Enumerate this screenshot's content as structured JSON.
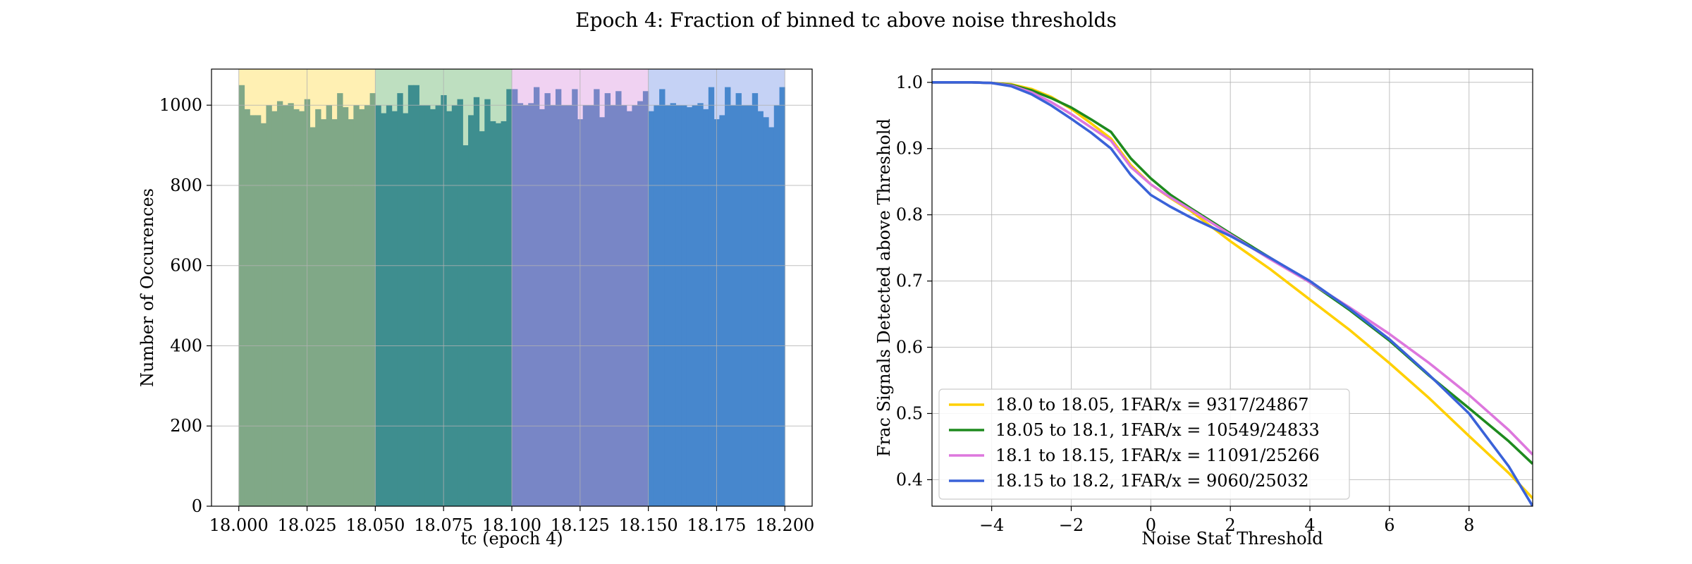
{
  "figure_title": "Epoch 4: Fraction of binned tc above noise thresholds",
  "colors": {
    "band_fill": [
      "#fff0b3",
      "#bedfc0",
      "#f0d2f2",
      "#c5d2f5"
    ],
    "hist_fill": [
      "#80a887",
      "#3e8e8f",
      "#7886c6",
      "#4787cd"
    ],
    "curve_colors": [
      "#ffd000",
      "#1e8a1e",
      "#dd77dd",
      "#3a62d8"
    ],
    "grid": "#b0b0b0",
    "axis": "#000000"
  },
  "chart_data": [
    {
      "type": "bar",
      "subtype": "histogram",
      "xlabel": "tc (epoch 4)",
      "ylabel": "Number of Occurences",
      "xlim": [
        17.99,
        18.21
      ],
      "ylim": [
        0,
        1090
      ],
      "xticks": [
        18.0,
        18.025,
        18.05,
        18.075,
        18.1,
        18.125,
        18.15,
        18.175,
        18.2
      ],
      "xtick_labels": [
        "18.000",
        "18.025",
        "18.050",
        "18.075",
        "18.100",
        "18.125",
        "18.150",
        "18.175",
        "18.200"
      ],
      "yticks": [
        0,
        200,
        400,
        600,
        800,
        1000
      ],
      "ytick_labels": [
        "0",
        "200",
        "400",
        "600",
        "800",
        "1000"
      ],
      "grid": true,
      "bin_width": 0.002,
      "shaded_bands": [
        {
          "x0": 18.0,
          "x1": 18.05
        },
        {
          "x0": 18.05,
          "x1": 18.1
        },
        {
          "x0": 18.1,
          "x1": 18.15
        },
        {
          "x0": 18.15,
          "x1": 18.2
        }
      ],
      "series": [
        {
          "x_start": 18.0,
          "values": [
            1050,
            990,
            975,
            975,
            955,
            1000,
            985,
            1010,
            1000,
            1005,
            990,
            985,
            1015,
            945,
            990,
            965,
            1000,
            965,
            1030,
            995,
            965,
            1000,
            990,
            1000,
            1030
          ]
        },
        {
          "x_start": 18.05,
          "values": [
            1000,
            980,
            1000,
            985,
            1030,
            980,
            1050,
            1050,
            1000,
            1000,
            990,
            1000,
            1025,
            985,
            1000,
            1015,
            900,
            975,
            1020,
            935,
            1015,
            960,
            955,
            960,
            1040
          ]
        },
        {
          "x_start": 18.1,
          "values": [
            1040,
            1005,
            1000,
            1005,
            1045,
            990,
            1030,
            1000,
            1040,
            1000,
            1000,
            1040,
            965,
            1000,
            1000,
            1040,
            970,
            1030,
            1000,
            1035,
            1000,
            985,
            1000,
            1010,
            1035
          ]
        },
        {
          "x_start": 18.15,
          "values": [
            985,
            1000,
            1040,
            1000,
            1005,
            1000,
            1000,
            995,
            1000,
            1005,
            990,
            1045,
            965,
            975,
            1045,
            1000,
            1030,
            1000,
            1000,
            1030,
            985,
            970,
            945,
            1000,
            1045
          ]
        }
      ]
    },
    {
      "type": "line",
      "xlabel": "Noise Stat Threshold",
      "ylabel": "Frac Signals Detected above Threshold",
      "xlim": [
        -5.5,
        9.6
      ],
      "ylim": [
        0.36,
        1.02
      ],
      "xticks": [
        -4,
        -2,
        0,
        2,
        4,
        6,
        8
      ],
      "xtick_labels": [
        "−4",
        "−2",
        "0",
        "2",
        "4",
        "6",
        "8"
      ],
      "yticks": [
        0.4,
        0.5,
        0.6,
        0.7,
        0.8,
        0.9,
        1.0
      ],
      "ytick_labels": [
        "0.4",
        "0.5",
        "0.6",
        "0.7",
        "0.8",
        "0.9",
        "1.0"
      ],
      "grid": true,
      "legend_position": "lower-left",
      "series": [
        {
          "name": "18.0 to 18.05, 1FAR/x = 9317/24867",
          "x": [
            -5.5,
            -4.5,
            -4,
            -3.5,
            -3,
            -2.5,
            -2,
            -1.5,
            -1,
            -0.5,
            0,
            0.5,
            1,
            2,
            3,
            4,
            5,
            6,
            7,
            8,
            9,
            9.6
          ],
          "y": [
            1.0,
            1.0,
            0.999,
            0.997,
            0.99,
            0.978,
            0.96,
            0.938,
            0.915,
            0.875,
            0.846,
            0.825,
            0.806,
            0.76,
            0.718,
            0.672,
            0.626,
            0.576,
            0.523,
            0.466,
            0.41,
            0.372
          ]
        },
        {
          "name": "18.05 to 18.1, 1FAR/x = 10549/24833",
          "x": [
            -5.5,
            -4.5,
            -4,
            -3.5,
            -3,
            -2.5,
            -2,
            -1.5,
            -1,
            -0.5,
            0,
            0.5,
            1,
            2,
            3,
            4,
            5,
            6,
            7,
            8,
            9,
            9.6
          ],
          "y": [
            1.0,
            1.0,
            0.999,
            0.996,
            0.988,
            0.976,
            0.962,
            0.944,
            0.925,
            0.885,
            0.855,
            0.83,
            0.81,
            0.772,
            0.735,
            0.698,
            0.656,
            0.61,
            0.557,
            0.508,
            0.458,
            0.424
          ]
        },
        {
          "name": "18.1 to 18.15, 1FAR/x = 11091/25266",
          "x": [
            -5.5,
            -4.5,
            -4,
            -3.5,
            -3,
            -2.5,
            -2,
            -1.5,
            -1,
            -0.5,
            0,
            0.5,
            1,
            2,
            3,
            4,
            5,
            6,
            7,
            8,
            9,
            9.6
          ],
          "y": [
            1.0,
            1.0,
            0.999,
            0.995,
            0.985,
            0.97,
            0.952,
            0.932,
            0.912,
            0.872,
            0.846,
            0.826,
            0.808,
            0.77,
            0.733,
            0.698,
            0.66,
            0.62,
            0.576,
            0.528,
            0.475,
            0.438
          ]
        },
        {
          "name": "18.15 to 18.2, 1FAR/x = 9060/25032",
          "x": [
            -5.5,
            -4.5,
            -4,
            -3.5,
            -3,
            -2.5,
            -2,
            -1.5,
            -1,
            -0.5,
            0,
            0.5,
            1,
            2,
            3,
            4,
            5,
            6,
            7,
            8,
            9,
            9.6
          ],
          "y": [
            1.0,
            1.0,
            0.999,
            0.994,
            0.982,
            0.965,
            0.945,
            0.924,
            0.9,
            0.86,
            0.83,
            0.812,
            0.796,
            0.768,
            0.735,
            0.7,
            0.658,
            0.612,
            0.558,
            0.5,
            0.42,
            0.36
          ]
        }
      ]
    }
  ]
}
